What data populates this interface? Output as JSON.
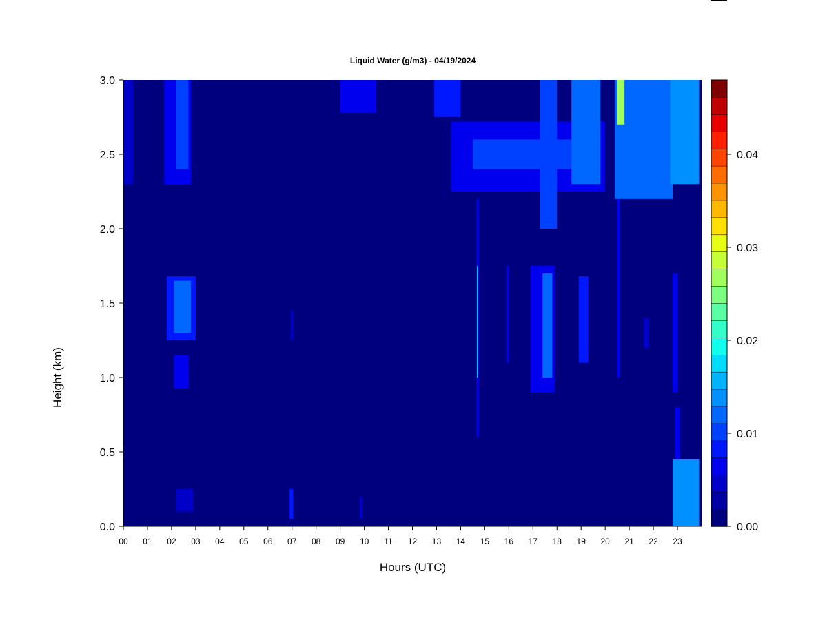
{
  "chart_data": {
    "type": "heatmap",
    "title": "Liquid Water (g/m3) - 04/19/2024",
    "xlabel": "Hours (UTC)",
    "ylabel": "Height (km)",
    "xlim": [
      0,
      24
    ],
    "ylim": [
      0,
      3.0
    ],
    "x_ticks": [
      "00",
      "01",
      "02",
      "03",
      "04",
      "05",
      "06",
      "07",
      "08",
      "09",
      "10",
      "11",
      "12",
      "13",
      "14",
      "15",
      "16",
      "17",
      "18",
      "19",
      "20",
      "21",
      "22",
      "23"
    ],
    "y_ticks": [
      "0.0",
      "0.5",
      "1.0",
      "1.5",
      "2.0",
      "2.5",
      "3.0"
    ],
    "colorbar": {
      "range": [
        0,
        0.048
      ],
      "levels": 24,
      "ticks": [
        "0.00",
        "0.01",
        "0.02",
        "0.03",
        "0.04"
      ],
      "tick_values": [
        0,
        0.01,
        0.02,
        0.03,
        0.04
      ],
      "colors": [
        "#00007f",
        "#0000a4",
        "#0000c9",
        "#0000ee",
        "#0018ff",
        "#0040ff",
        "#0068ff",
        "#0090ff",
        "#00b4ff",
        "#00dcff",
        "#10ffee",
        "#34ffc9",
        "#58ffa4",
        "#7cff80",
        "#a0ff5c",
        "#c4ff38",
        "#e8ff14",
        "#ffe000",
        "#ffb800",
        "#ff9400",
        "#ff6c00",
        "#ff4400",
        "#ff2000",
        "#e80000",
        "#c00000",
        "#7f0000"
      ]
    },
    "background_value": 0.0,
    "cloud_regions": [
      {
        "x": [
          0.0,
          0.4
        ],
        "y": [
          2.3,
          3.0
        ],
        "value": 0.004
      },
      {
        "x": [
          1.7,
          2.8
        ],
        "y": [
          2.3,
          3.0
        ],
        "value": 0.007
      },
      {
        "x": [
          2.2,
          2.7
        ],
        "y": [
          2.4,
          3.0
        ],
        "value": 0.011
      },
      {
        "x": [
          1.8,
          3.0
        ],
        "y": [
          1.25,
          1.68
        ],
        "value": 0.009
      },
      {
        "x": [
          2.1,
          2.8
        ],
        "y": [
          1.3,
          1.65
        ],
        "value": 0.013
      },
      {
        "x": [
          2.1,
          2.7
        ],
        "y": [
          0.93,
          1.15
        ],
        "value": 0.007
      },
      {
        "x": [
          2.2,
          2.9
        ],
        "y": [
          0.1,
          0.25
        ],
        "value": 0.005
      },
      {
        "x": [
          6.9,
          7.05
        ],
        "y": [
          0.05,
          0.25
        ],
        "value": 0.008
      },
      {
        "x": [
          6.95,
          7.05
        ],
        "y": [
          1.25,
          1.45
        ],
        "value": 0.004
      },
      {
        "x": [
          9.8,
          9.9
        ],
        "y": [
          0.05,
          0.2
        ],
        "value": 0.004
      },
      {
        "x": [
          9.0,
          10.5
        ],
        "y": [
          2.78,
          3.0
        ],
        "value": 0.007
      },
      {
        "x": [
          12.9,
          14.0
        ],
        "y": [
          2.75,
          3.0
        ],
        "value": 0.009
      },
      {
        "x": [
          13.6,
          20.0
        ],
        "y": [
          2.25,
          2.72
        ],
        "value": 0.007
      },
      {
        "x": [
          14.5,
          19.8
        ],
        "y": [
          2.4,
          2.6
        ],
        "value": 0.011
      },
      {
        "x": [
          14.65,
          14.75
        ],
        "y": [
          0.6,
          2.2
        ],
        "value": 0.007
      },
      {
        "x": [
          14.68,
          14.72
        ],
        "y": [
          1.0,
          1.75
        ],
        "value": 0.019
      },
      {
        "x": [
          15.9,
          16.0
        ],
        "y": [
          1.1,
          1.75
        ],
        "value": 0.006
      },
      {
        "x": [
          16.9,
          17.9
        ],
        "y": [
          0.9,
          1.75
        ],
        "value": 0.007
      },
      {
        "x": [
          17.4,
          17.8
        ],
        "y": [
          1.0,
          1.7
        ],
        "value": 0.012
      },
      {
        "x": [
          17.3,
          18.0
        ],
        "y": [
          2.0,
          3.0
        ],
        "value": 0.011
      },
      {
        "x": [
          18.9,
          19.3
        ],
        "y": [
          1.1,
          1.68
        ],
        "value": 0.009
      },
      {
        "x": [
          18.6,
          19.8
        ],
        "y": [
          2.3,
          3.0
        ],
        "value": 0.012
      },
      {
        "x": [
          20.5,
          20.6
        ],
        "y": [
          1.0,
          3.0
        ],
        "value": 0.007
      },
      {
        "x": [
          20.4,
          22.8
        ],
        "y": [
          2.2,
          3.0
        ],
        "value": 0.013
      },
      {
        "x": [
          20.5,
          20.8
        ],
        "y": [
          2.7,
          3.0
        ],
        "value": 0.028
      },
      {
        "x": [
          21.6,
          21.8
        ],
        "y": [
          1.2,
          1.4
        ],
        "value": 0.004
      },
      {
        "x": [
          22.7,
          23.9
        ],
        "y": [
          2.3,
          3.0
        ],
        "value": 0.015
      },
      {
        "x": [
          22.8,
          23.0
        ],
        "y": [
          0.9,
          1.7
        ],
        "value": 0.007
      },
      {
        "x": [
          22.8,
          23.9
        ],
        "y": [
          0.0,
          0.45
        ],
        "value": 0.014
      },
      {
        "x": [
          22.9,
          23.1
        ],
        "y": [
          0.45,
          0.8
        ],
        "value": 0.007
      }
    ]
  }
}
